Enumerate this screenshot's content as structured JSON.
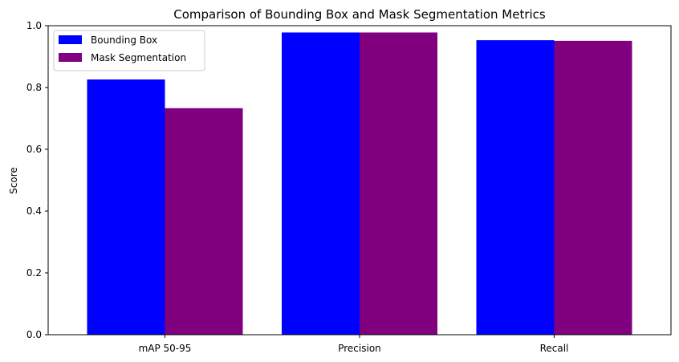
{
  "chart_data": {
    "type": "bar",
    "title": "Comparison of Bounding Box and Mask Segmentation Metrics",
    "xlabel": "",
    "ylabel": "Score",
    "categories": [
      "mAP 50-95",
      "Precision",
      "Recall"
    ],
    "series": [
      {
        "name": "Bounding Box",
        "color": "#0000ff",
        "values": [
          0.826,
          0.978,
          0.953
        ]
      },
      {
        "name": "Mask Segmentation",
        "color": "#800080",
        "values": [
          0.733,
          0.978,
          0.951
        ]
      }
    ],
    "ylim": [
      0,
      1
    ],
    "yticks": [
      "0.0",
      "0.2",
      "0.4",
      "0.6",
      "0.8",
      "1.0"
    ],
    "grid": false,
    "legend_position": "top-left"
  }
}
